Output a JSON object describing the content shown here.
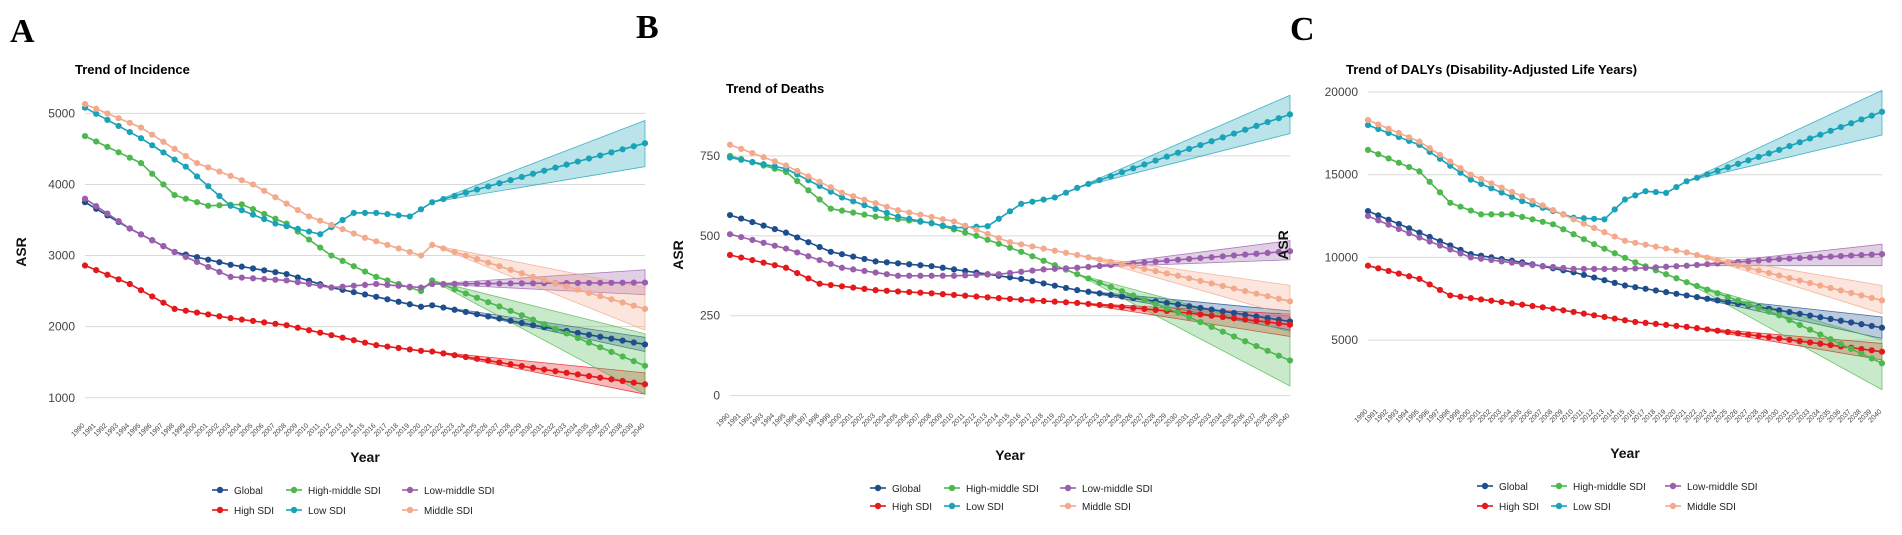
{
  "colors": {
    "Global": "#1f4e8c",
    "High SDI": "#e3191c",
    "High-middle SDI": "#4cb84e",
    "Low SDI": "#1aa3b8",
    "Low-middle SDI": "#9a5fac",
    "Middle SDI": "#f3a98c",
    "grid": "#d9d9d9"
  },
  "legend_labels": {
    "Global": "Global",
    "High SDI": "High SDI",
    "High-middle SDI": "High-middle SDI",
    "Low SDI": "Low SDI",
    "Low-middle SDI": "Low-middle SDI",
    "Middle SDI": "Middle SDI"
  },
  "chart_data": [
    {
      "panel": "A",
      "type": "line",
      "title": "Trend of Incidence",
      "xlabel": "Year",
      "ylabel": "ASR",
      "x_range": [
        1990,
        2040
      ],
      "projection_start": 2021,
      "ylim": [
        800,
        5300
      ],
      "yticks": [
        1000,
        2000,
        3000,
        4000,
        5000
      ],
      "ytick_labels": [
        "1000",
        "2000",
        "3000",
        "4000",
        "5000"
      ],
      "series": [
        {
          "name": "Global",
          "anchors": [
            [
              1990,
              3750
            ],
            [
              1994,
              3380
            ],
            [
              1998,
              3050
            ],
            [
              2003,
              2870
            ],
            [
              2008,
              2740
            ],
            [
              2012,
              2550
            ],
            [
              2016,
              2420
            ],
            [
              2020,
              2280
            ],
            [
              2021,
              2300
            ],
            [
              2030,
              2020
            ],
            [
              2040,
              1750
            ]
          ],
          "band_end": [
            1650,
            1850
          ]
        },
        {
          "name": "High SDI",
          "anchors": [
            [
              1990,
              2860
            ],
            [
              1994,
              2600
            ],
            [
              1998,
              2250
            ],
            [
              2003,
              2120
            ],
            [
              2008,
              2020
            ],
            [
              2012,
              1880
            ],
            [
              2016,
              1740
            ],
            [
              2020,
              1660
            ],
            [
              2021,
              1650
            ],
            [
              2030,
              1420
            ],
            [
              2040,
              1190
            ]
          ],
          "band_end": [
            1050,
            1350
          ]
        },
        {
          "name": "High-middle SDI",
          "anchors": [
            [
              1990,
              4680
            ],
            [
              1995,
              4300
            ],
            [
              1998,
              3850
            ],
            [
              2001,
              3700
            ],
            [
              2004,
              3720
            ],
            [
              2008,
              3450
            ],
            [
              2012,
              3000
            ],
            [
              2016,
              2700
            ],
            [
              2020,
              2500
            ],
            [
              2021,
              2650
            ],
            [
              2030,
              2100
            ],
            [
              2040,
              1450
            ]
          ],
          "band_end": [
            1050,
            1900
          ]
        },
        {
          "name": "Low SDI",
          "anchors": [
            [
              1990,
              5080
            ],
            [
              1995,
              4650
            ],
            [
              1999,
              4250
            ],
            [
              2003,
              3700
            ],
            [
              2007,
              3450
            ],
            [
              2011,
              3300
            ],
            [
              2014,
              3600
            ],
            [
              2016,
              3600
            ],
            [
              2019,
              3550
            ],
            [
              2021,
              3750
            ],
            [
              2030,
              4150
            ],
            [
              2040,
              4580
            ]
          ],
          "band_end": [
            4250,
            4900
          ]
        },
        {
          "name": "Low-middle SDI",
          "anchors": [
            [
              1990,
              3800
            ],
            [
              1994,
              3380
            ],
            [
              1998,
              3050
            ],
            [
              2003,
              2700
            ],
            [
              2008,
              2650
            ],
            [
              2012,
              2550
            ],
            [
              2016,
              2600
            ],
            [
              2020,
              2550
            ],
            [
              2021,
              2600
            ],
            [
              2030,
              2610
            ],
            [
              2040,
              2620
            ]
          ],
          "band_end": [
            2450,
            2800
          ]
        },
        {
          "name": "Middle SDI",
          "anchors": [
            [
              1990,
              5130
            ],
            [
              1995,
              4800
            ],
            [
              2000,
              4300
            ],
            [
              2005,
              4000
            ],
            [
              2010,
              3550
            ],
            [
              2015,
              3250
            ],
            [
              2020,
              3000
            ],
            [
              2021,
              3150
            ],
            [
              2030,
              2700
            ],
            [
              2040,
              2250
            ]
          ],
          "band_end": [
            1950,
            2550
          ]
        }
      ],
      "legend": [
        "Global",
        "High-middle SDI",
        "Low-middle SDI",
        "High SDI",
        "Low SDI",
        "Middle SDI"
      ]
    },
    {
      "panel": "B",
      "type": "line",
      "title": "Trend of Deaths",
      "xlabel": "Year",
      "ylabel": "ASR",
      "x_range": [
        1990,
        2040
      ],
      "projection_start": 2021,
      "ylim": [
        -20,
        900
      ],
      "yticks": [
        0,
        250,
        500,
        750
      ],
      "ytick_labels": [
        "0",
        "250",
        "500",
        "750"
      ],
      "series": [
        {
          "name": "Global",
          "anchors": [
            [
              1990,
              565
            ],
            [
              1995,
              510
            ],
            [
              1999,
              450
            ],
            [
              2003,
              420
            ],
            [
              2008,
              405
            ],
            [
              2012,
              385
            ],
            [
              2016,
              365
            ],
            [
              2021,
              330
            ],
            [
              2030,
              285
            ],
            [
              2040,
              232
            ]
          ],
          "band_end": [
            205,
            265
          ]
        },
        {
          "name": "High SDI",
          "anchors": [
            [
              1990,
              440
            ],
            [
              1995,
              400
            ],
            [
              1998,
              350
            ],
            [
              2003,
              330
            ],
            [
              2008,
              320
            ],
            [
              2012,
              310
            ],
            [
              2016,
              300
            ],
            [
              2021,
              290
            ],
            [
              2030,
              262
            ],
            [
              2040,
              222
            ]
          ],
          "band_end": [
            185,
            255
          ]
        },
        {
          "name": "High-middle SDI",
          "anchors": [
            [
              1990,
              750
            ],
            [
              1995,
              700
            ],
            [
              1999,
              585
            ],
            [
              2003,
              560
            ],
            [
              2008,
              540
            ],
            [
              2012,
              500
            ],
            [
              2016,
              450
            ],
            [
              2021,
              380
            ],
            [
              2030,
              260
            ],
            [
              2040,
              110
            ]
          ],
          "band_end": [
            30,
            200
          ]
        },
        {
          "name": "Low SDI",
          "anchors": [
            [
              1990,
              745
            ],
            [
              1995,
              710
            ],
            [
              2000,
              620
            ],
            [
              2005,
              560
            ],
            [
              2010,
              525
            ],
            [
              2013,
              530
            ],
            [
              2016,
              600
            ],
            [
              2019,
              620
            ],
            [
              2021,
              650
            ],
            [
              2030,
              760
            ],
            [
              2040,
              880
            ]
          ],
          "band_end": [
            820,
            940
          ]
        },
        {
          "name": "Low-middle SDI",
          "anchors": [
            [
              1990,
              505
            ],
            [
              1995,
              460
            ],
            [
              2000,
              400
            ],
            [
              2005,
              375
            ],
            [
              2010,
              375
            ],
            [
              2014,
              380
            ],
            [
              2018,
              395
            ],
            [
              2021,
              400
            ],
            [
              2030,
              425
            ],
            [
              2040,
              452
            ]
          ],
          "band_end": [
            425,
            485
          ]
        },
        {
          "name": "Middle SDI",
          "anchors": [
            [
              1990,
              785
            ],
            [
              1995,
              720
            ],
            [
              2000,
              635
            ],
            [
              2005,
              580
            ],
            [
              2010,
              545
            ],
            [
              2015,
              480
            ],
            [
              2021,
              440
            ],
            [
              2030,
              375
            ],
            [
              2040,
              295
            ]
          ],
          "band_end": [
            250,
            345
          ]
        }
      ],
      "legend": [
        "Global",
        "High-middle SDI",
        "Low-middle SDI",
        "High SDI",
        "Low SDI",
        "Middle SDI"
      ]
    },
    {
      "panel": "C",
      "type": "line",
      "title": "Trend of DALYs (Disability-Adjusted Life Years)",
      "xlabel": "Year",
      "ylabel": "ASR",
      "x_range": [
        1990,
        2040
      ],
      "projection_start": 2021,
      "ylim": [
        1500,
        20000
      ],
      "yticks": [
        5000,
        10000,
        15000,
        20000
      ],
      "ytick_labels": [
        "5000",
        "10000",
        "15000",
        "20000"
      ],
      "series": [
        {
          "name": "Global",
          "anchors": [
            [
              1990,
              12800
            ],
            [
              1995,
              11500
            ],
            [
              2000,
              10200
            ],
            [
              2005,
              9700
            ],
            [
              2010,
              9100
            ],
            [
              2015,
              8300
            ],
            [
              2021,
              7700
            ],
            [
              2030,
              6800
            ],
            [
              2040,
              5750
            ]
          ],
          "band_end": [
            5100,
            6400
          ]
        },
        {
          "name": "High SDI",
          "anchors": [
            [
              1990,
              9500
            ],
            [
              1995,
              8700
            ],
            [
              1998,
              7700
            ],
            [
              2003,
              7300
            ],
            [
              2008,
              6900
            ],
            [
              2012,
              6500
            ],
            [
              2016,
              6100
            ],
            [
              2021,
              5800
            ],
            [
              2030,
              5100
            ],
            [
              2040,
              4300
            ]
          ],
          "band_end": [
            3800,
            4800
          ]
        },
        {
          "name": "High-middle SDI",
          "anchors": [
            [
              1990,
              16500
            ],
            [
              1995,
              15200
            ],
            [
              1998,
              13300
            ],
            [
              2001,
              12600
            ],
            [
              2004,
              12600
            ],
            [
              2008,
              12000
            ],
            [
              2012,
              10800
            ],
            [
              2016,
              9700
            ],
            [
              2021,
              8500
            ],
            [
              2030,
              6500
            ],
            [
              2040,
              3600
            ]
          ],
          "band_end": [
            2000,
            5000
          ]
        },
        {
          "name": "Low SDI",
          "anchors": [
            [
              1990,
              18000
            ],
            [
              1995,
              16800
            ],
            [
              2000,
              14700
            ],
            [
              2005,
              13400
            ],
            [
              2010,
              12400
            ],
            [
              2013,
              12300
            ],
            [
              2015,
              13500
            ],
            [
              2017,
              14000
            ],
            [
              2019,
              13900
            ],
            [
              2021,
              14600
            ],
            [
              2030,
              16500
            ],
            [
              2040,
              18800
            ]
          ],
          "band_end": [
            17400,
            20100
          ]
        },
        {
          "name": "Low-middle SDI",
          "anchors": [
            [
              1990,
              12500
            ],
            [
              1995,
              11200
            ],
            [
              2000,
              10000
            ],
            [
              2005,
              9600
            ],
            [
              2010,
              9300
            ],
            [
              2015,
              9300
            ],
            [
              2021,
              9500
            ],
            [
              2030,
              9900
            ],
            [
              2040,
              10200
            ]
          ],
          "band_end": [
            9500,
            10800
          ]
        },
        {
          "name": "Middle SDI",
          "anchors": [
            [
              1990,
              18300
            ],
            [
              1995,
              17000
            ],
            [
              2000,
              15000
            ],
            [
              2005,
              13700
            ],
            [
              2010,
              12300
            ],
            [
              2015,
              11000
            ],
            [
              2021,
              10300
            ],
            [
              2030,
              8900
            ],
            [
              2040,
              7400
            ]
          ],
          "band_end": [
            6600,
            8300
          ]
        }
      ],
      "legend": [
        "Global",
        "High-middle SDI",
        "Low-middle SDI",
        "High SDI",
        "Low SDI",
        "Middle SDI"
      ]
    }
  ]
}
